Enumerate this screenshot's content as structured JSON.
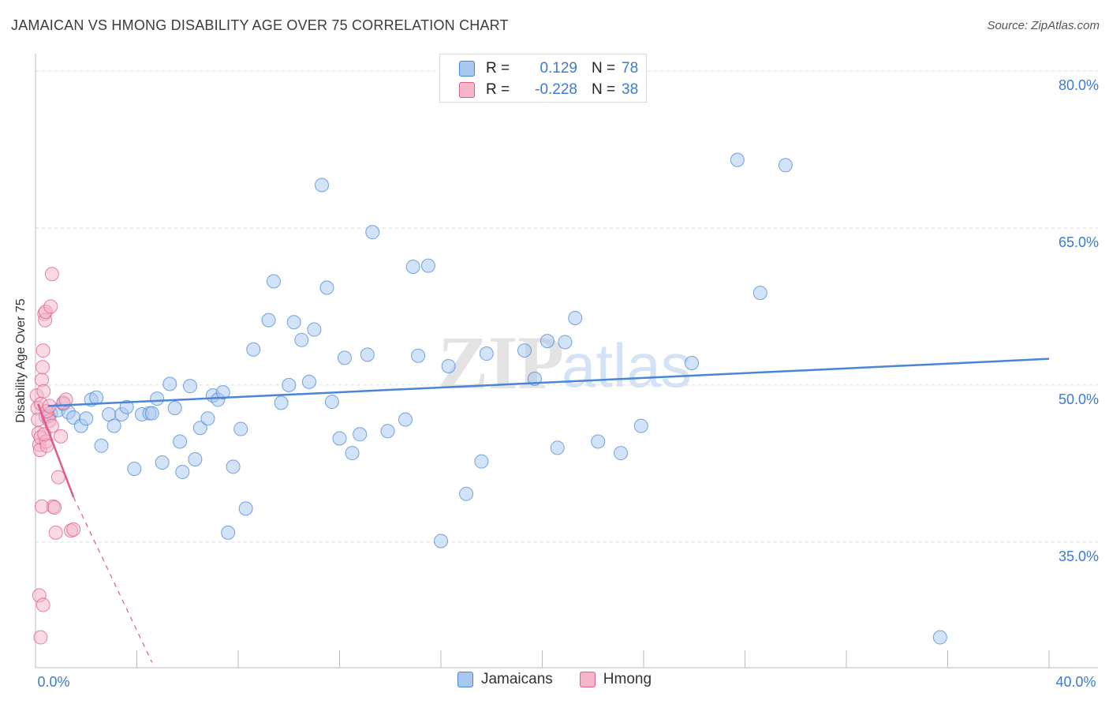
{
  "title": "JAMAICAN VS HMONG DISABILITY AGE OVER 75 CORRELATION CHART",
  "source": "Source: ZipAtlas.com",
  "watermark": {
    "part1": "ZIP",
    "part2": "atlas"
  },
  "legend_top": [
    {
      "r_label": "R =",
      "r_value": "0.129",
      "n_label": "N =",
      "n_value": "78",
      "color": "#a8c8f0"
    },
    {
      "r_label": "R =",
      "r_value": "-0.228",
      "n_label": "N =",
      "n_value": "38",
      "color": "#f4b6c8"
    }
  ],
  "bottom_legend": [
    {
      "label": "Jamaicans",
      "color": "#a8c8f0"
    },
    {
      "label": "Hmong",
      "color": "#f4b6c8"
    }
  ],
  "chart_data": {
    "type": "scatter",
    "title": "JAMAICAN VS HMONG DISABILITY AGE OVER 75 CORRELATION CHART",
    "xlabel": "",
    "ylabel": "Disability Age Over 75",
    "xlim": [
      0,
      40
    ],
    "ylim": [
      23,
      81.5
    ],
    "x_tick_labels": [
      "0.0%",
      "40.0%"
    ],
    "y_ticks": [
      35,
      50,
      65,
      80
    ],
    "y_tick_labels": [
      "35.0%",
      "50.0%",
      "65.0%",
      "80.0%"
    ],
    "grid": true,
    "legend_position": "top-center",
    "series": [
      {
        "name": "Jamaicans",
        "color": "#4a86d8",
        "fill": "#a8c8f0",
        "trend": {
          "x": [
            0.5,
            40
          ],
          "y": [
            48.0,
            52.5
          ],
          "style": "solid"
        },
        "x": [
          0.4,
          0.6,
          0.9,
          1.1,
          1.3,
          1.5,
          1.8,
          2.0,
          2.2,
          2.4,
          2.6,
          2.9,
          3.1,
          3.4,
          3.6,
          3.9,
          4.2,
          4.5,
          4.6,
          4.8,
          5.0,
          5.3,
          5.5,
          5.7,
          5.8,
          6.1,
          6.3,
          6.5,
          6.8,
          7.0,
          7.2,
          7.4,
          7.6,
          7.8,
          8.1,
          8.3,
          8.6,
          9.2,
          9.4,
          9.7,
          10.0,
          10.2,
          10.5,
          10.8,
          11.0,
          11.3,
          11.5,
          11.7,
          12.0,
          12.2,
          12.5,
          12.8,
          13.1,
          13.3,
          13.9,
          14.6,
          14.9,
          15.1,
          15.5,
          16.0,
          16.3,
          17.0,
          17.6,
          17.8,
          19.3,
          19.7,
          20.2,
          20.6,
          20.9,
          21.3,
          22.2,
          23.1,
          23.9,
          25.9,
          27.7,
          28.6,
          35.7,
          29.6
        ],
        "y": [
          47.0,
          47.3,
          47.6,
          48.2,
          47.4,
          46.9,
          46.1,
          46.8,
          48.6,
          48.8,
          44.2,
          47.2,
          46.1,
          47.2,
          47.9,
          42.0,
          47.2,
          47.3,
          47.3,
          48.7,
          42.6,
          50.1,
          47.8,
          44.6,
          41.7,
          49.9,
          42.9,
          45.9,
          46.8,
          49.0,
          48.6,
          49.3,
          35.9,
          42.2,
          45.8,
          38.2,
          53.4,
          56.2,
          59.9,
          48.3,
          50.0,
          56.0,
          54.3,
          50.3,
          55.3,
          69.1,
          59.3,
          48.4,
          44.9,
          52.6,
          43.5,
          45.3,
          52.9,
          64.6,
          45.6,
          46.7,
          61.3,
          52.8,
          61.4,
          35.1,
          51.8,
          39.6,
          42.7,
          53.0,
          53.3,
          50.6,
          54.2,
          44.0,
          54.1,
          56.4,
          44.6,
          43.5,
          46.1,
          52.1,
          71.5,
          58.8,
          25.9,
          71.0
        ]
      },
      {
        "name": "Hmong",
        "color": "#e05a8a",
        "fill": "#f4b6c8",
        "trend": {
          "x": [
            0.1,
            1.5
          ],
          "y": [
            48.2,
            39.3
          ],
          "style": "solid",
          "extended_x": [
            1.5,
            4.6
          ],
          "extended_y": [
            39.3,
            23.5
          ],
          "extended_style": "dashed"
        },
        "x": [
          0.05,
          0.08,
          0.1,
          0.12,
          0.15,
          0.18,
          0.2,
          0.22,
          0.25,
          0.28,
          0.3,
          0.32,
          0.35,
          0.38,
          0.4,
          0.42,
          0.45,
          0.5,
          0.55,
          0.6,
          0.65,
          0.7,
          0.75,
          0.8,
          0.9,
          1.0,
          1.1,
          1.2,
          1.4,
          1.5,
          0.15,
          0.2,
          0.25,
          0.3,
          0.35,
          0.45,
          0.55,
          0.65
        ],
        "y": [
          49.0,
          47.8,
          46.7,
          45.4,
          44.3,
          43.8,
          45.0,
          48.2,
          50.5,
          51.7,
          53.3,
          49.4,
          56.8,
          56.2,
          57.0,
          44.6,
          44.2,
          47.0,
          46.6,
          57.5,
          60.6,
          38.4,
          38.3,
          35.9,
          41.2,
          45.1,
          48.3,
          48.6,
          36.1,
          36.2,
          29.9,
          25.9,
          38.4,
          29.0,
          45.3,
          47.5,
          48.0,
          46.1
        ]
      }
    ]
  }
}
